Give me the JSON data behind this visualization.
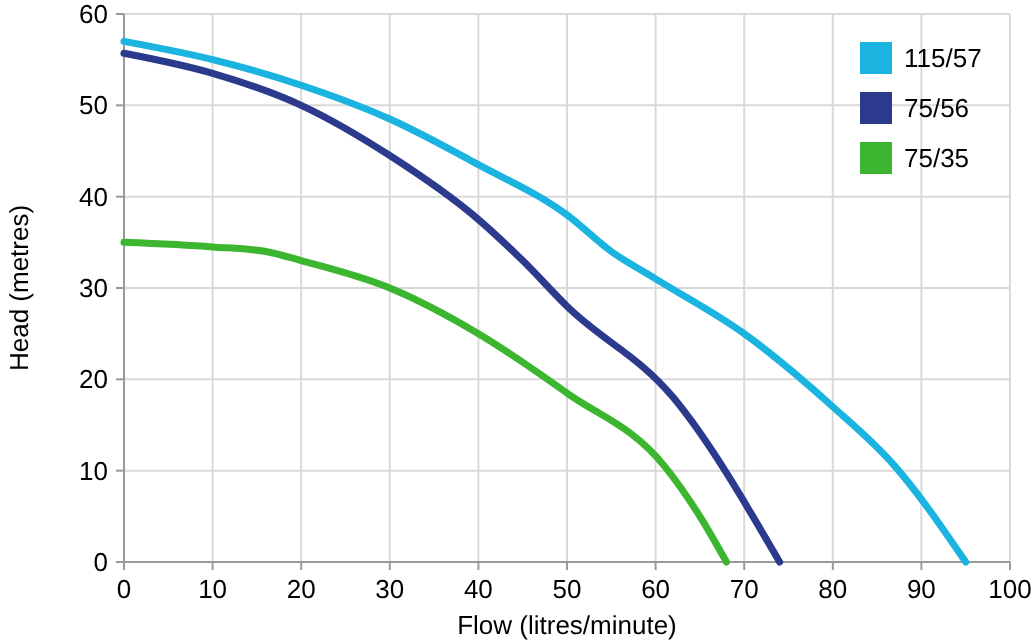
{
  "chart_data": {
    "type": "line",
    "xlabel": "Flow (litres/minute)",
    "ylabel": "Head (metres)",
    "xlim": [
      0,
      100
    ],
    "xticks": [
      0,
      10,
      20,
      30,
      40,
      50,
      60,
      70,
      80,
      90,
      100
    ],
    "ylim": [
      0,
      60
    ],
    "yticks": [
      0,
      10,
      20,
      30,
      40,
      50,
      60
    ],
    "grid": true,
    "legend": "top right",
    "series": [
      {
        "name": "115/57",
        "color": "#1bb3e0",
        "x": [
          0,
          10,
          20,
          30,
          40,
          50,
          55,
          60,
          70,
          80,
          87,
          95
        ],
        "values": [
          57,
          55,
          52.2,
          48.5,
          43.5,
          38,
          34,
          31,
          25,
          17,
          10.5,
          0
        ]
      },
      {
        "name": "75/56",
        "color": "#2b3a8c",
        "x": [
          0,
          10,
          20,
          30,
          40,
          45,
          50,
          62,
          74
        ],
        "values": [
          55.7,
          53.5,
          50,
          44.5,
          37.5,
          33,
          28,
          18,
          0
        ]
      },
      {
        "name": "75/35",
        "color": "#3cb52f",
        "x": [
          0,
          10,
          16,
          20,
          30,
          40,
          50,
          61,
          65,
          68
        ],
        "values": [
          35,
          34.5,
          34,
          33,
          30,
          25,
          18.5,
          10.5,
          5,
          0
        ]
      }
    ]
  }
}
